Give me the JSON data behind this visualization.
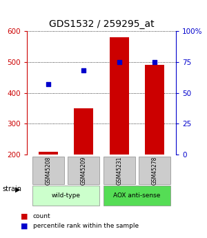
{
  "title": "GDS1532 / 259295_at",
  "samples": [
    "GSM45208",
    "GSM45209",
    "GSM45231",
    "GSM45278"
  ],
  "counts": [
    210,
    350,
    580,
    490
  ],
  "percentiles": [
    57,
    68,
    75,
    75
  ],
  "ylim_left": [
    200,
    600
  ],
  "ylim_right": [
    0,
    100
  ],
  "yticks_left": [
    200,
    300,
    400,
    500,
    600
  ],
  "yticks_right": [
    0,
    25,
    50,
    75,
    100
  ],
  "yticklabels_right": [
    "0",
    "25",
    "50",
    "75",
    "100%"
  ],
  "bar_color": "#cc0000",
  "dot_color": "#0000cc",
  "groups": [
    {
      "label": "wild-type",
      "indices": [
        0,
        1
      ],
      "color": "#ccffcc"
    },
    {
      "label": "AOX anti-sense",
      "indices": [
        2,
        3
      ],
      "color": "#55dd55"
    }
  ],
  "strain_label": "strain",
  "legend_count": "count",
  "legend_pct": "percentile rank within the sample",
  "title_fontsize": 10,
  "axis_color_left": "#cc0000",
  "axis_color_right": "#0000cc",
  "background_color": "#ffffff",
  "sample_box_color": "#cccccc",
  "bar_width": 0.55
}
